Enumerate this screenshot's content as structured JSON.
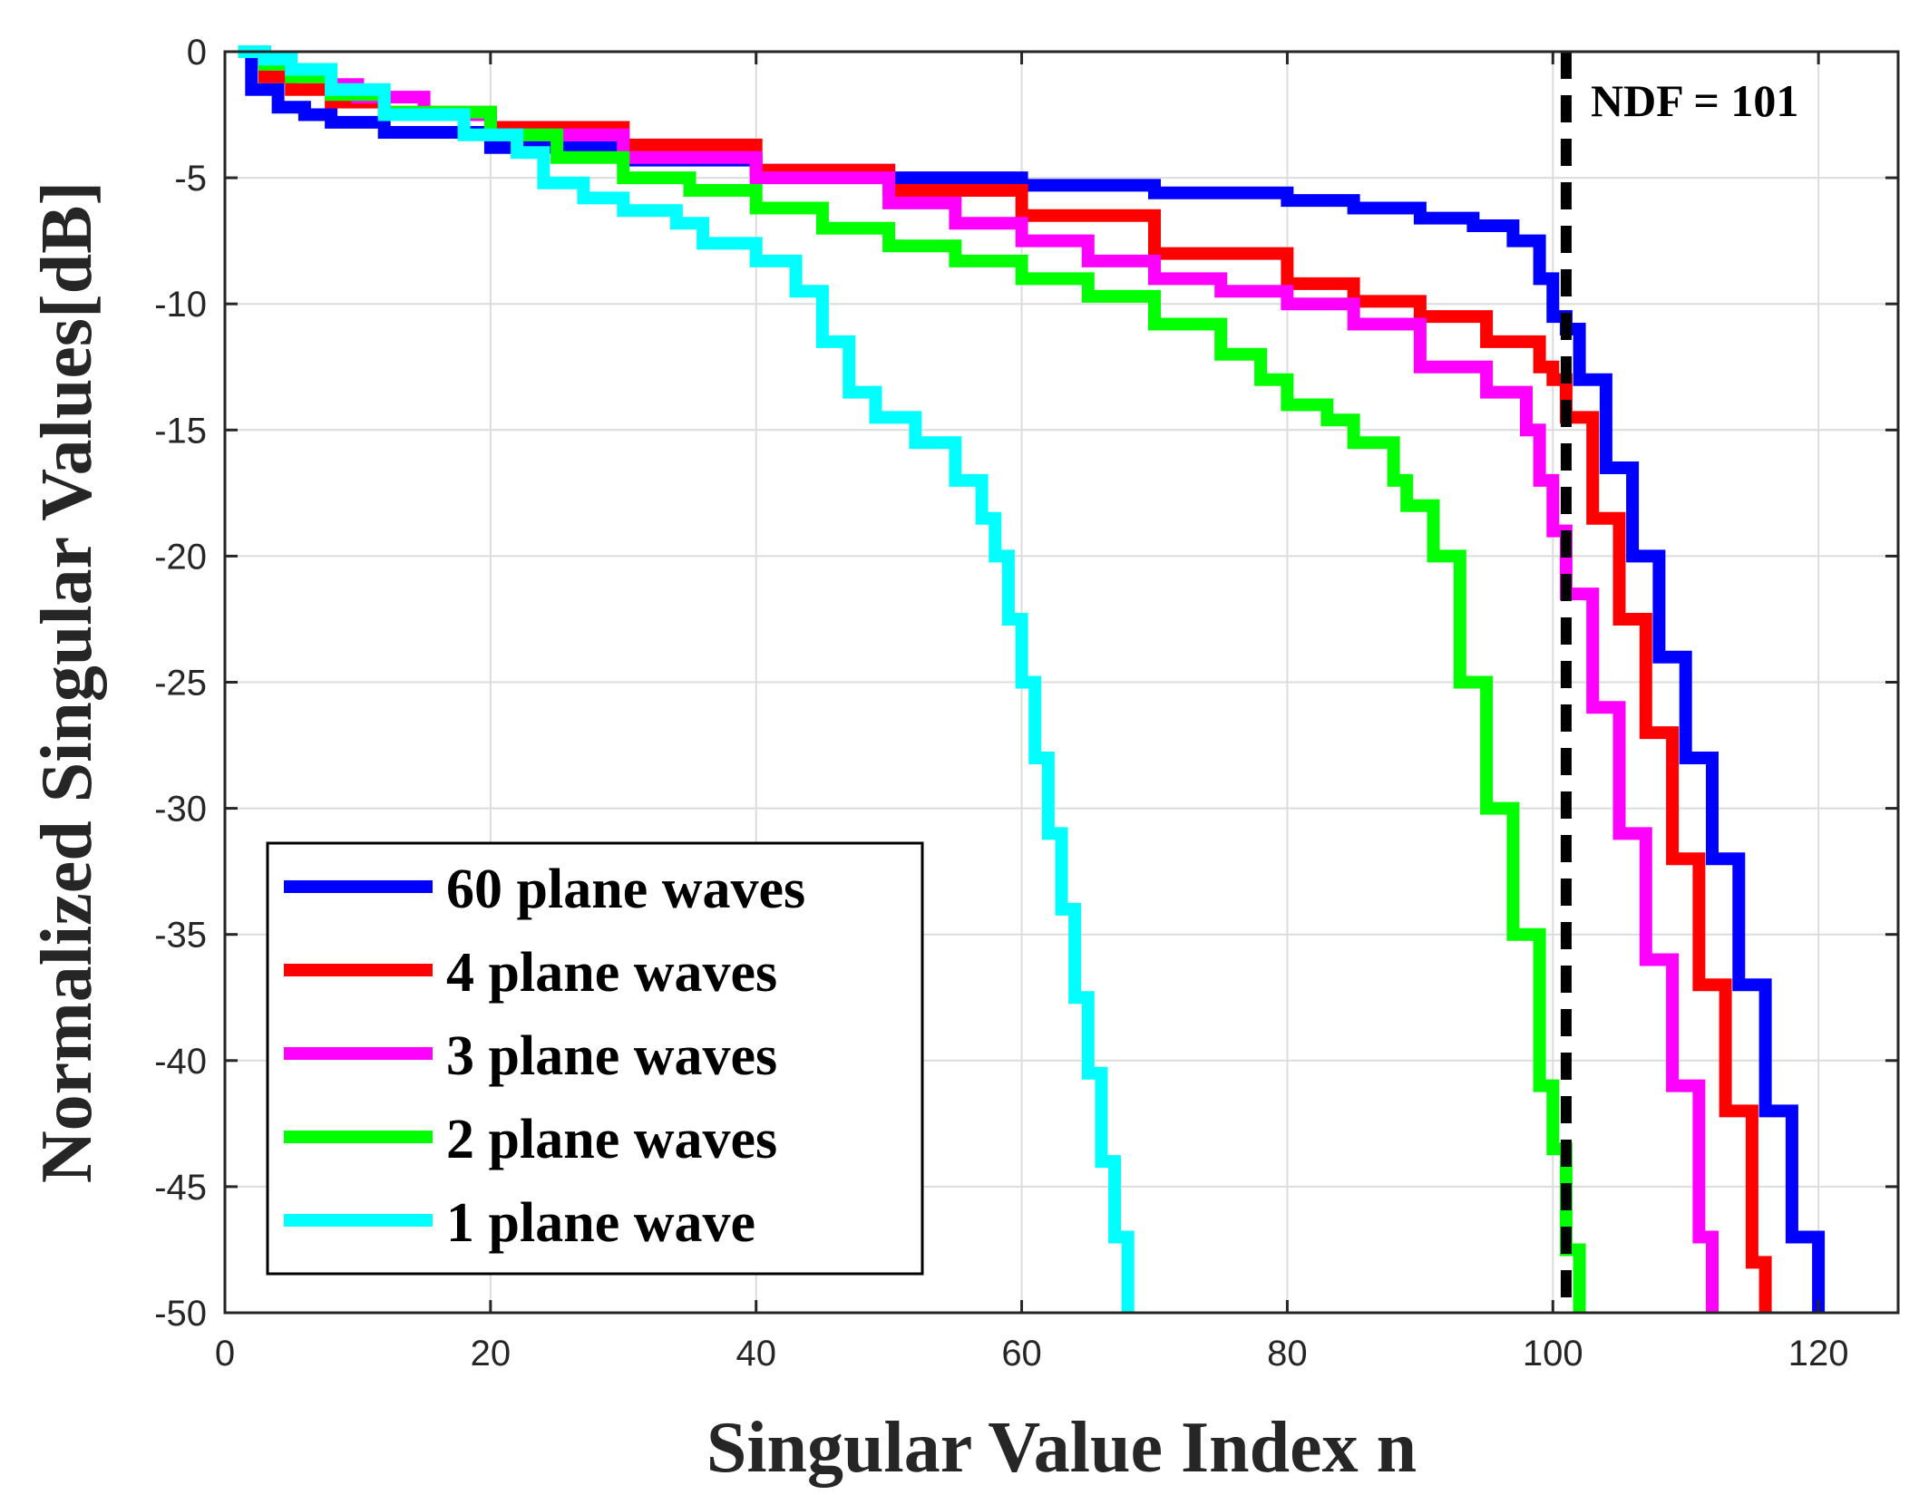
{
  "chart_data": {
    "type": "line",
    "title": "",
    "xlabel": "Singular Value Index n",
    "ylabel": "Normalized Singular Values[dB]",
    "xlim": [
      0,
      126
    ],
    "ylim": [
      -50,
      0
    ],
    "x_ticks": [
      0,
      20,
      40,
      60,
      80,
      100,
      120
    ],
    "y_ticks": [
      0,
      -5,
      -10,
      -15,
      -20,
      -25,
      -30,
      -35,
      -40,
      -45,
      -50
    ],
    "x_tick_labels": [
      "0",
      "20",
      "40",
      "60",
      "80",
      "100",
      "120"
    ],
    "y_tick_labels": [
      "0",
      "-5",
      "-10",
      "-15",
      "-20",
      "-25",
      "-30",
      "-35",
      "-40",
      "-45",
      "-50"
    ],
    "grid": true,
    "legend_position": "bottom-left",
    "annotation": {
      "text": "NDF = 101",
      "x": 101,
      "color": "#000000",
      "style": "dashed vertical line"
    },
    "series": [
      {
        "name": "60 plane waves",
        "color": "#0000ff",
        "x": [
          1,
          2,
          4,
          6,
          8,
          12,
          20,
          30,
          40,
          50,
          60,
          70,
          80,
          85,
          90,
          94,
          97,
          99,
          100,
          101,
          102,
          104,
          106,
          108,
          110,
          112,
          114,
          116,
          118,
          120
        ],
        "y": [
          0,
          -1.5,
          -2.2,
          -2.5,
          -2.8,
          -3.2,
          -3.8,
          -4.3,
          -4.7,
          -5.0,
          -5.3,
          -5.6,
          -5.9,
          -6.2,
          -6.6,
          -6.9,
          -7.5,
          -9.0,
          -10.5,
          -11.0,
          -13.0,
          -16.5,
          -20.0,
          -24.0,
          -28.0,
          -32.0,
          -37.0,
          -42.0,
          -47.0,
          -50.0
        ]
      },
      {
        "name": "4 plane waves",
        "color": "#ff0000",
        "x": [
          1,
          3,
          5,
          8,
          12,
          20,
          30,
          40,
          50,
          60,
          70,
          80,
          85,
          90,
          95,
          99,
          100,
          101,
          103,
          105,
          107,
          109,
          111,
          113,
          115,
          116
        ],
        "y": [
          0,
          -1.0,
          -1.5,
          -2.0,
          -2.4,
          -3.0,
          -3.7,
          -4.7,
          -5.5,
          -6.5,
          -8.0,
          -9.2,
          -9.9,
          -10.5,
          -11.5,
          -12.5,
          -13.0,
          -14.5,
          -18.5,
          -22.5,
          -27.0,
          -32.0,
          -37.0,
          -42.0,
          -48.0,
          -50.0
        ]
      },
      {
        "name": "3 plane waves",
        "color": "#ff00ff",
        "x": [
          1,
          3,
          5,
          8,
          10,
          15,
          20,
          30,
          40,
          50,
          55,
          60,
          65,
          70,
          75,
          80,
          85,
          90,
          95,
          98,
          99,
          100,
          101,
          103,
          105,
          107,
          109,
          111,
          112
        ],
        "y": [
          0,
          -0.3,
          -0.8,
          -1.3,
          -1.8,
          -2.5,
          -3.3,
          -4.2,
          -5.0,
          -6.0,
          -6.8,
          -7.5,
          -8.3,
          -9.0,
          -9.5,
          -10.0,
          -10.8,
          -12.5,
          -13.5,
          -15.0,
          -17.0,
          -19.0,
          -21.5,
          -26.0,
          -31.0,
          -36.0,
          -41.0,
          -47.0,
          -50.0
        ]
      },
      {
        "name": "2 plane waves",
        "color": "#00ff00",
        "x": [
          1,
          3,
          5,
          8,
          12,
          20,
          25,
          30,
          35,
          40,
          45,
          50,
          55,
          60,
          65,
          70,
          75,
          78,
          80,
          83,
          85,
          88,
          89,
          91,
          93,
          95,
          97,
          99,
          100,
          101,
          102
        ],
        "y": [
          0,
          -0.5,
          -1.0,
          -1.7,
          -2.4,
          -3.3,
          -4.2,
          -5.0,
          -5.5,
          -6.2,
          -7.0,
          -7.7,
          -8.3,
          -9.0,
          -9.7,
          -10.8,
          -12.0,
          -13.0,
          -14.0,
          -14.6,
          -15.5,
          -17.0,
          -18.0,
          -20.0,
          -25.0,
          -30.0,
          -35.0,
          -41.0,
          -43.5,
          -47.5,
          -50.0
        ]
      },
      {
        "name": "1 plane wave",
        "color": "#00ffff",
        "x": [
          1,
          3,
          5,
          8,
          12,
          18,
          22,
          24,
          27,
          30,
          34,
          36,
          40,
          43,
          45,
          47,
          49,
          52,
          55,
          57,
          58,
          59,
          60,
          61,
          62,
          63,
          64,
          65,
          66,
          67,
          68
        ],
        "y": [
          0,
          -0.3,
          -0.7,
          -1.5,
          -2.5,
          -3.3,
          -4.0,
          -5.2,
          -5.8,
          -6.3,
          -6.8,
          -7.6,
          -8.3,
          -9.5,
          -11.5,
          -13.5,
          -14.5,
          -15.5,
          -17.0,
          -18.5,
          -20.0,
          -22.5,
          -25.0,
          -28.0,
          -31.0,
          -34.0,
          -37.5,
          -40.5,
          -44.0,
          -47.0,
          -50.0
        ]
      }
    ]
  }
}
